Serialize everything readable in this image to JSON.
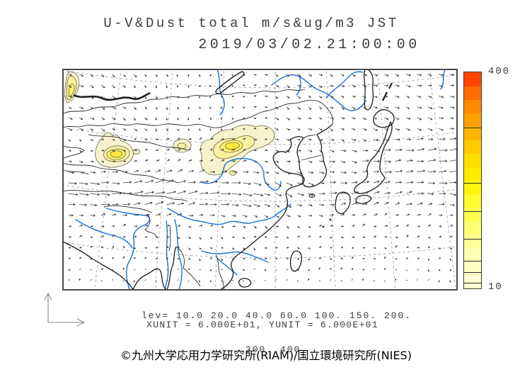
{
  "header": {
    "title": "U-V&Dust total m/s&ug/m3 JST",
    "datetime": "2019/03/02.21:00:00"
  },
  "legend": {
    "lev_line1": "lev= 10.0 20.0 40.0 60.0 100. 150. 200.",
    "lev_line2": "300. 400.",
    "units_line": "XUNIT = 6.000E+01, YUNIT = 6.000E+01"
  },
  "colorbar": {
    "max_label": "400",
    "min_label": "10",
    "min_value": 10,
    "max_value": 400,
    "levels": [
      10,
      20,
      40,
      60,
      100,
      150,
      200,
      300,
      400
    ],
    "ramp": [
      [
        0.0,
        "#ffffd8"
      ],
      [
        0.18,
        "#ffffad"
      ],
      [
        0.36,
        "#ffff42"
      ],
      [
        0.5,
        "#fff200"
      ],
      [
        0.62,
        "#ffd800"
      ],
      [
        0.74,
        "#ffae00"
      ],
      [
        0.86,
        "#ff8300"
      ],
      [
        0.94,
        "#ff5a00"
      ],
      [
        1.0,
        "#ff3000"
      ]
    ]
  },
  "footer": {
    "copyright": "©九州大学応用力学研究所(RIAM)/国立環境研究所(NIES)"
  },
  "map": {
    "theme": {
      "river": "#1a6fd4",
      "coast": "#1c1c1c",
      "border": "#2a2a2a",
      "graticule": "#9a9a9a",
      "arrow": "#3a3a3a",
      "dust_outer": "#f6f2cb",
      "dust_mid": "#f8f2a0",
      "dust_inner": "#fdf06a",
      "dust_core": "#ffe93b",
      "contour": "#6b6b50",
      "frame": "#4a4a4a",
      "axis_arrow": "#8a8a8a"
    }
  }
}
